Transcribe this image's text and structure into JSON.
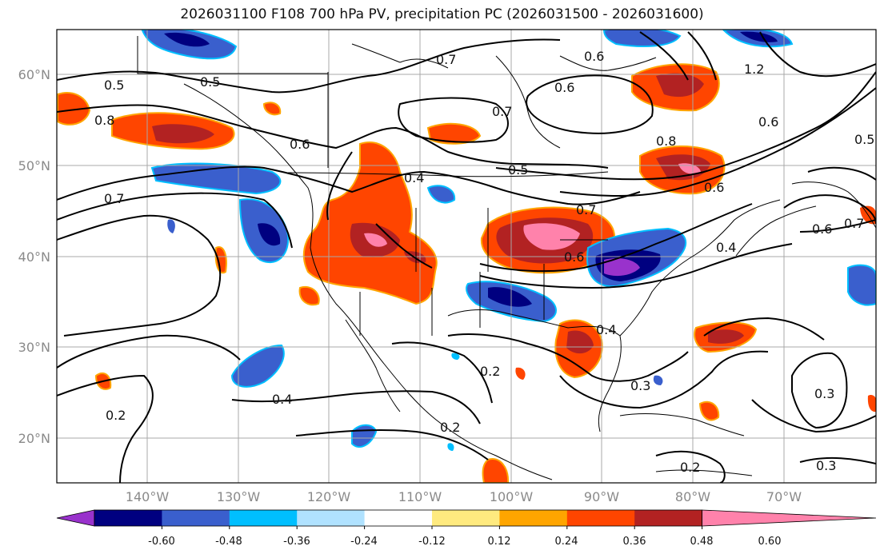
{
  "title": "2026031100 F108 700 hPa PV, precipitation PC (2026031500 - 2026031600)",
  "lat_labels": [
    "60°N",
    "50°N",
    "40°N",
    "30°N",
    "20°N"
  ],
  "lon_labels": [
    "140°W",
    "130°W",
    "120°W",
    "110°W",
    "100°W",
    "90°W",
    "80°W",
    "70°W"
  ],
  "colorbar": {
    "colors": [
      "#9932cc",
      "#000080",
      "#3a5fcd",
      "#00bfff",
      "#b0e2ff",
      "#ffffff",
      "#ffea7f",
      "#ffa500",
      "#ff4500",
      "#b22222",
      "#ff82ab"
    ],
    "tick_labels": [
      "-0.60",
      "-0.48",
      "-0.36",
      "-0.24",
      "-0.12",
      "0.12",
      "0.24",
      "0.36",
      "0.48",
      "0.60"
    ]
  },
  "contour_labels": [
    "0.5",
    "0.5",
    "0.8",
    "0.6",
    "0.7",
    "0.4",
    "0.7",
    "0.6",
    "0.7",
    "0.5",
    "0.6",
    "0.8",
    "0.7",
    "0.6",
    "0.4",
    "0.6",
    "0.4",
    "0.2",
    "0.3",
    "0.4",
    "0.2",
    "0.2",
    "0.3",
    "0.3",
    "0.2",
    "0.6",
    "0.7",
    "0.6",
    "1.2",
    "0.5"
  ]
}
